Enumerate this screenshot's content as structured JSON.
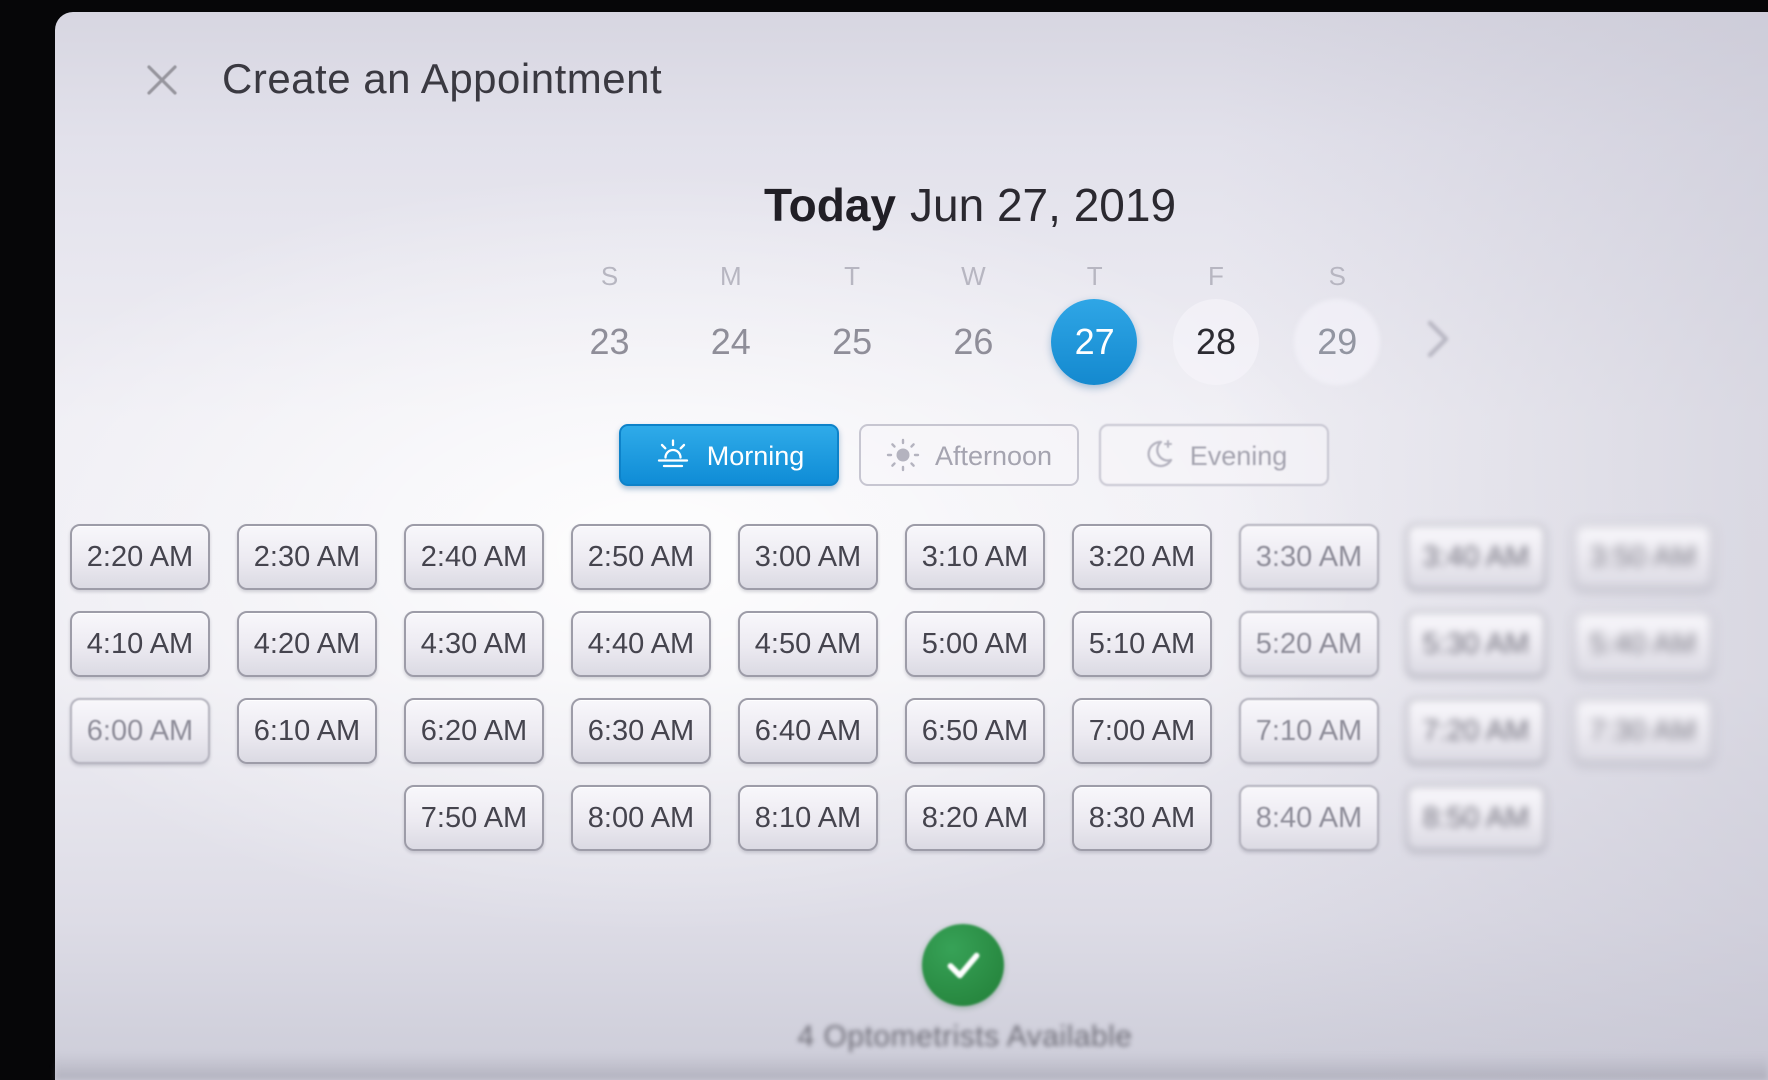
{
  "window": {
    "title": "Create an Appointment"
  },
  "date_header": {
    "today_label": "Today",
    "date_label": "Jun 27, 2019"
  },
  "calendar": {
    "weekday_headers": [
      "S",
      "M",
      "T",
      "W",
      "T",
      "F",
      "S"
    ],
    "days": [
      {
        "label": "23",
        "state": "muted"
      },
      {
        "label": "24",
        "state": "muted"
      },
      {
        "label": "25",
        "state": "muted"
      },
      {
        "label": "26",
        "state": "muted"
      },
      {
        "label": "27",
        "state": "selected"
      },
      {
        "label": "28",
        "state": "normal"
      },
      {
        "label": "29",
        "state": "faint"
      }
    ],
    "next_week_icon": "chevron-right-icon"
  },
  "periods": [
    {
      "label": "Morning",
      "icon": "sunrise-icon",
      "selected": true
    },
    {
      "label": "Afternoon",
      "icon": "sun-icon",
      "selected": false
    },
    {
      "label": "Evening",
      "icon": "moon-icon",
      "selected": false
    }
  ],
  "time_slots": {
    "rows": [
      [
        {
          "label": "2:20 AM",
          "col": 0,
          "state": "normal"
        },
        {
          "label": "2:30 AM",
          "col": 1,
          "state": "normal"
        },
        {
          "label": "2:40 AM",
          "col": 2,
          "state": "normal"
        },
        {
          "label": "2:50 AM",
          "col": 3,
          "state": "normal"
        },
        {
          "label": "3:00 AM",
          "col": 4,
          "state": "normal"
        },
        {
          "label": "3:10 AM",
          "col": 5,
          "state": "normal"
        },
        {
          "label": "3:20 AM",
          "col": 6,
          "state": "normal"
        },
        {
          "label": "3:30 AM",
          "col": 7,
          "state": "faded"
        },
        {
          "label": "3:40 AM",
          "col": 8,
          "state": "blur"
        },
        {
          "label": "3:50 AM",
          "col": 9,
          "state": "blur-more"
        }
      ],
      [
        {
          "label": "4:10 AM",
          "col": 0,
          "state": "normal"
        },
        {
          "label": "4:20 AM",
          "col": 1,
          "state": "normal"
        },
        {
          "label": "4:30 AM",
          "col": 2,
          "state": "normal"
        },
        {
          "label": "4:40 AM",
          "col": 3,
          "state": "normal"
        },
        {
          "label": "4:50 AM",
          "col": 4,
          "state": "normal"
        },
        {
          "label": "5:00 AM",
          "col": 5,
          "state": "normal"
        },
        {
          "label": "5:10 AM",
          "col": 6,
          "state": "normal"
        },
        {
          "label": "5:20 AM",
          "col": 7,
          "state": "faded"
        },
        {
          "label": "5:30 AM",
          "col": 8,
          "state": "blur"
        },
        {
          "label": "5:40 AM",
          "col": 9,
          "state": "blur-more"
        }
      ],
      [
        {
          "label": "6:00 AM",
          "col": 0,
          "state": "faded"
        },
        {
          "label": "6:10 AM",
          "col": 1,
          "state": "normal"
        },
        {
          "label": "6:20 AM",
          "col": 2,
          "state": "normal"
        },
        {
          "label": "6:30 AM",
          "col": 3,
          "state": "normal"
        },
        {
          "label": "6:40 AM",
          "col": 4,
          "state": "normal"
        },
        {
          "label": "6:50 AM",
          "col": 5,
          "state": "normal"
        },
        {
          "label": "7:00 AM",
          "col": 6,
          "state": "normal"
        },
        {
          "label": "7:10 AM",
          "col": 7,
          "state": "faded"
        },
        {
          "label": "7:20 AM",
          "col": 8,
          "state": "blur"
        },
        {
          "label": "7:30 AM",
          "col": 9,
          "state": "blur-more"
        }
      ],
      [
        {
          "label": "7:50 AM",
          "col": 2,
          "state": "normal"
        },
        {
          "label": "8:00 AM",
          "col": 3,
          "state": "normal"
        },
        {
          "label": "8:10 AM",
          "col": 4,
          "state": "normal"
        },
        {
          "label": "8:20 AM",
          "col": 5,
          "state": "normal"
        },
        {
          "label": "8:30 AM",
          "col": 6,
          "state": "normal"
        },
        {
          "label": "8:40 AM",
          "col": 7,
          "state": "faded"
        },
        {
          "label": "8:50 AM",
          "col": 8,
          "state": "blur"
        }
      ]
    ]
  },
  "footer": {
    "status_icon": "check-circle-icon",
    "status_text": "4 Optometrists Available"
  },
  "colors": {
    "accent_blue": "#1798df",
    "selected_day_blue": "#2196db",
    "success_green": "#2d9749"
  }
}
